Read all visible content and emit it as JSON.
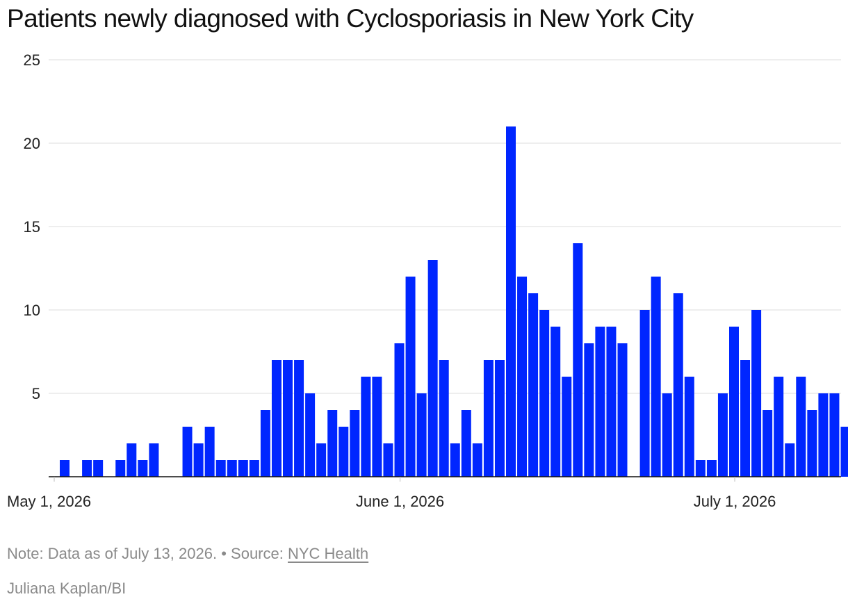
{
  "chart_data": {
    "type": "bar",
    "title": "Patients newly diagnosed with Cyclosporiasis in New York City",
    "xlabel": "",
    "ylabel": "",
    "ylim": [
      0,
      25
    ],
    "y_ticks": [
      "5",
      "10",
      "15",
      "20",
      "25"
    ],
    "x_tick_labels": [
      {
        "date": "2026-05-01",
        "label": "May 1, 2026"
      },
      {
        "date": "2026-06-01",
        "label": "June 1, 2026"
      },
      {
        "date": "2026-07-01",
        "label": "July 1, 2026"
      }
    ],
    "grid": true,
    "legend": "none",
    "bar_color": "#0026ff",
    "x_start": "2026-05-01",
    "values": [
      1,
      0,
      1,
      1,
      0,
      1,
      2,
      1,
      2,
      0,
      0,
      3,
      2,
      3,
      1,
      1,
      1,
      1,
      4,
      7,
      7,
      7,
      5,
      2,
      4,
      3,
      4,
      6,
      6,
      2,
      8,
      12,
      5,
      13,
      7,
      2,
      4,
      2,
      7,
      7,
      21,
      12,
      11,
      10,
      9,
      6,
      14,
      8,
      9,
      9,
      8,
      0,
      10,
      12,
      5,
      11,
      6,
      1,
      1,
      5,
      9,
      7,
      10,
      4,
      6,
      2,
      6,
      4,
      5,
      5,
      3
    ]
  },
  "footer": {
    "note_text": "Note: Data as of July 13, 2026.",
    "separator": "•",
    "source_prefix": "Source:",
    "source_link": "NYC Health",
    "credit": "Juliana Kaplan/BI"
  }
}
